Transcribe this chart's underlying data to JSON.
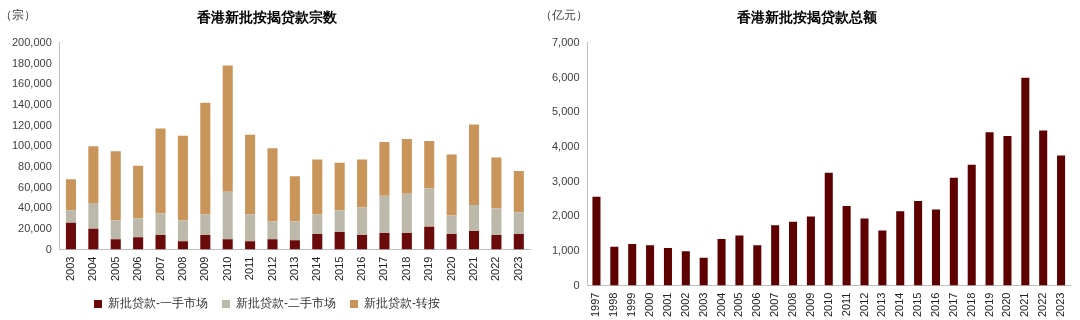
{
  "chart_data": [
    {
      "type": "bar",
      "title": "香港新批按揭贷款宗数",
      "ylabel": "（宗）",
      "stacked": true,
      "legend": "bottom",
      "grid": false,
      "categories": [
        "2003",
        "2004",
        "2005",
        "2006",
        "2007",
        "2008",
        "2009",
        "2010",
        "2011",
        "2012",
        "2013",
        "2014",
        "2015",
        "2016",
        "2017",
        "2018",
        "2019",
        "2020",
        "2021",
        "2022",
        "2023"
      ],
      "series": [
        {
          "name": "新批贷款-一手市场",
          "color": "#6b0a0a",
          "values": [
            26000,
            20000,
            10000,
            12000,
            14000,
            8000,
            14000,
            10000,
            8000,
            10000,
            9000,
            15000,
            17000,
            14000,
            16000,
            16000,
            22000,
            15000,
            18000,
            14000,
            15000
          ]
        },
        {
          "name": "新批贷款-二手市场",
          "color": "#bdb9aa",
          "values": [
            12000,
            25000,
            18000,
            18000,
            21000,
            20000,
            20000,
            46000,
            26000,
            17000,
            18000,
            19000,
            21000,
            27000,
            36000,
            38000,
            37000,
            18000,
            25000,
            26000,
            21000
          ]
        },
        {
          "name": "新批贷款-转按",
          "color": "#c9955a",
          "values": [
            30000,
            55000,
            67000,
            51000,
            82000,
            82000,
            108000,
            122000,
            77000,
            71000,
            44000,
            53000,
            46000,
            46000,
            52000,
            53000,
            46000,
            59000,
            78000,
            49000,
            40000
          ]
        }
      ],
      "ylim": [
        0,
        200000
      ],
      "yticks": [
        {
          "value": 0,
          "label": "0"
        },
        {
          "value": 20000,
          "label": "20,000"
        },
        {
          "value": 40000,
          "label": "40,000"
        },
        {
          "value": 60000,
          "label": "60,000"
        },
        {
          "value": 80000,
          "label": "80,000"
        },
        {
          "value": 100000,
          "label": "100,000"
        },
        {
          "value": 120000,
          "label": "120,000"
        },
        {
          "value": 140000,
          "label": "140,000"
        },
        {
          "value": 160000,
          "label": "160,000"
        },
        {
          "value": 180000,
          "label": "180,000"
        },
        {
          "value": 200000,
          "label": "200,000"
        }
      ]
    },
    {
      "type": "bar",
      "title": "香港新批按揭贷款总额",
      "ylabel": "（亿元）",
      "grid": false,
      "legend": false,
      "categories": [
        "1997",
        "1998",
        "1999",
        "2000",
        "2001",
        "2002",
        "2003",
        "2004",
        "2005",
        "2006",
        "2007",
        "2008",
        "2009",
        "2010",
        "2011",
        "2012",
        "2013",
        "2014",
        "2015",
        "2016",
        "2017",
        "2018",
        "2019",
        "2020",
        "2021",
        "2022",
        "2023"
      ],
      "series": [
        {
          "color": "#5e0000",
          "values": [
            2560,
            1120,
            1200,
            1160,
            1080,
            990,
            800,
            1340,
            1440,
            1160,
            1740,
            1840,
            1990,
            3250,
            2290,
            1930,
            1590,
            2140,
            2440,
            2190,
            3110,
            3480,
            4420,
            4310,
            5990,
            4470,
            3750
          ]
        }
      ],
      "ylim": [
        0,
        7000
      ],
      "yticks": [
        {
          "value": 0,
          "label": "0"
        },
        {
          "value": 1000,
          "label": "1,000"
        },
        {
          "value": 2000,
          "label": "2,000"
        },
        {
          "value": 3000,
          "label": "3,000"
        },
        {
          "value": 4000,
          "label": "4,000"
        },
        {
          "value": 5000,
          "label": "5,000"
        },
        {
          "value": 6000,
          "label": "6,000"
        },
        {
          "value": 7000,
          "label": "7,000"
        }
      ]
    }
  ]
}
